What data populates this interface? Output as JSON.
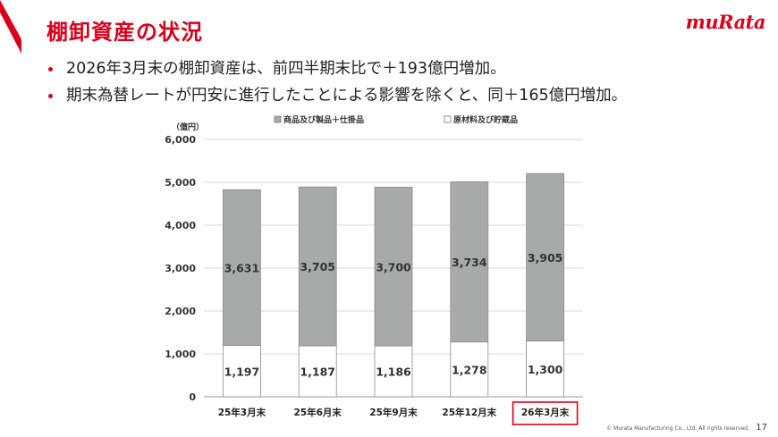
{
  "header": {
    "title": "棚卸資産の状況",
    "logo_text": "muRata"
  },
  "bullets": [
    "2026年3月末の棚卸資産は、前四半期末比で＋193億円増加。",
    "期末為替レートが円安に進行したことによる影響を除くと、同＋165億円増加。"
  ],
  "chart_data": {
    "type": "bar",
    "stacked": true,
    "unit_label": "（億円）",
    "categories": [
      "25年3月末",
      "25年6月末",
      "25年9月末",
      "25年12月末",
      "26年3月末"
    ],
    "highlighted_category": "26年3月末",
    "series": [
      {
        "name": "原材料及び貯蔵品",
        "values": [
          1197,
          1187,
          1186,
          1278,
          1300
        ],
        "color": "#ffffff"
      },
      {
        "name": "商品及び製品＋仕掛品",
        "values": [
          3631,
          3705,
          3700,
          3734,
          3905
        ],
        "color": "#a7aaa9"
      }
    ],
    "ylim": [
      0,
      6000
    ],
    "yticks": [
      "0",
      "1,000",
      "2,000",
      "3,000",
      "4,000",
      "5,000",
      "6,000"
    ],
    "value_labels": {
      "原材料及び貯蔵品": [
        "1,197",
        "1,187",
        "1,186",
        "1,278",
        "1,300"
      ],
      "商品及び製品＋仕掛品": [
        "3,631",
        "3,705",
        "3,700",
        "3,734",
        "3,905"
      ]
    },
    "grid": true,
    "legend_position": "top",
    "highlight_color": "#d6001c"
  },
  "footer": {
    "copyright": "© Murata Manufacturing Co., Ltd. All rights reserved.",
    "page_number": "17"
  }
}
